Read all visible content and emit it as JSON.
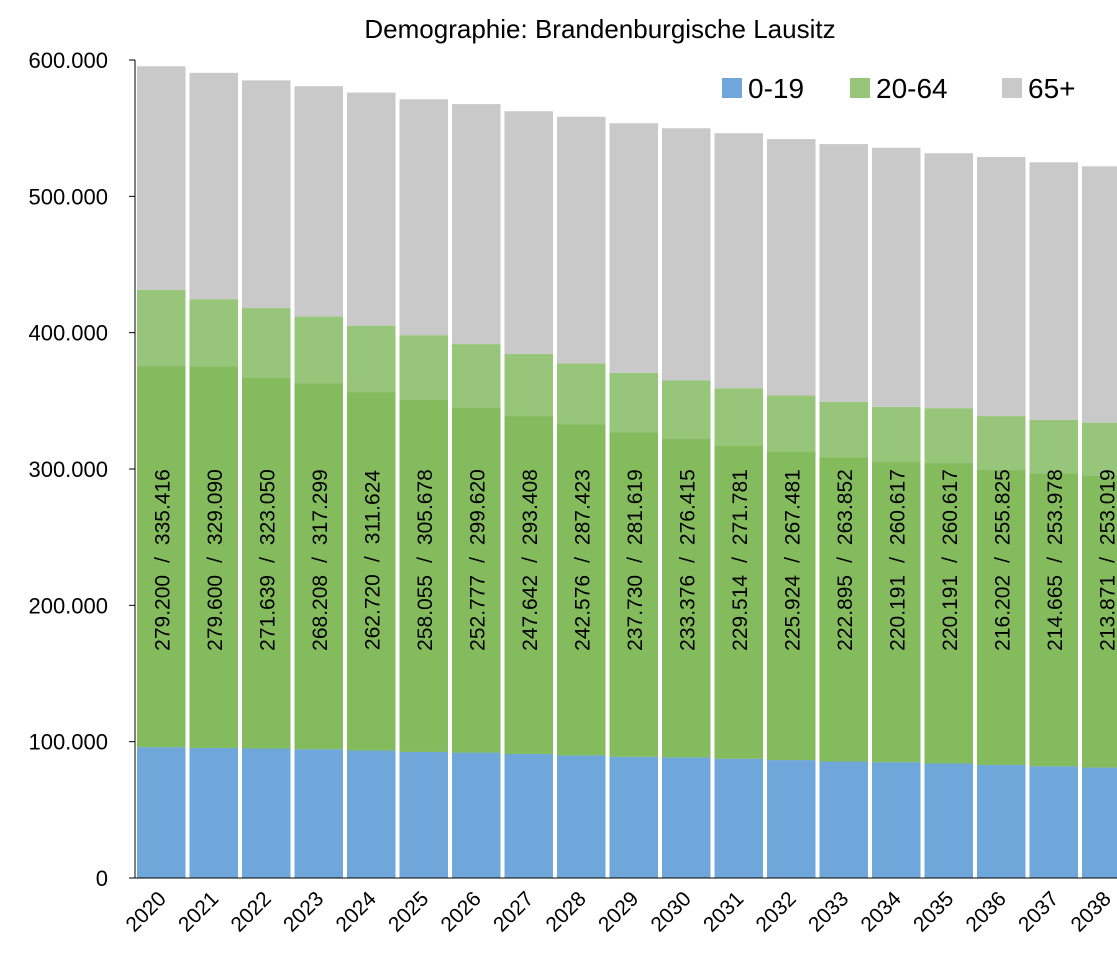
{
  "chart_data": {
    "type": "bar",
    "stacked": true,
    "title": "Demographie: Brandenburgische Lausitz",
    "categories": [
      "2020",
      "2021",
      "2022",
      "2023",
      "2024",
      "2025",
      "2026",
      "2027",
      "2028",
      "2029",
      "2030",
      "2031",
      "2032",
      "2033",
      "2034",
      "2035",
      "2036",
      "2037",
      "2038"
    ],
    "series": [
      {
        "name": "0-19",
        "color": "#70a7da",
        "values": [
          96000,
          95500,
          95000,
          94500,
          93500,
          92500,
          92000,
          91000,
          90000,
          89000,
          88500,
          87500,
          86500,
          85500,
          85000,
          84000,
          83000,
          82000,
          81000
        ]
      },
      {
        "name": "20-64",
        "color": "#97c67b",
        "values": [
          335416,
          329090,
          323050,
          317299,
          311624,
          305678,
          299620,
          293408,
          287423,
          281619,
          276415,
          271781,
          267481,
          263852,
          260617,
          260617,
          255825,
          253978,
          253019
        ],
        "value_labels": [
          "335.416",
          "329.090",
          "323.050",
          "317.299",
          "311.624",
          "305.678",
          "299.620",
          "293.408",
          "287.423",
          "281.619",
          "276.415",
          "271.781",
          "267.481",
          "263.852",
          "260.617",
          "260.617",
          "255.825",
          "253.978",
          "253.019"
        ]
      },
      {
        "name": "65+",
        "color": "#c9c9c9",
        "values": [
          164000,
          166000,
          167000,
          169000,
          171000,
          173000,
          176000,
          178000,
          181000,
          183000,
          185000,
          187000,
          188000,
          189000,
          190000,
          187000,
          190000,
          189000,
          188000
        ]
      }
    ],
    "overlay": {
      "color": "#83bb5d",
      "values": [
        279200,
        279600,
        271639,
        268208,
        262720,
        258055,
        252777,
        247642,
        242576,
        237730,
        233376,
        229514,
        225924,
        222895,
        220191,
        220191,
        216202,
        214665,
        213871
      ],
      "value_labels": [
        "279.200",
        "279.600",
        "271.639",
        "268.208",
        "262.720",
        "258.055",
        "252.777",
        "247.642",
        "242.576",
        "237.730",
        "233.376",
        "229.514",
        "225.924",
        "222.895",
        "220.191",
        "220.191",
        "216.202",
        "214.665",
        "213.871"
      ]
    },
    "label_separator": "/",
    "ylim": [
      0,
      600000
    ],
    "yticks": [
      0,
      {
        "value": 100000,
        "label": "100.000"
      },
      {
        "value": 200000,
        "label": "200.000"
      },
      {
        "value": 300000,
        "label": "300.000"
      },
      {
        "value": 400000,
        "label": "400.000"
      },
      {
        "value": 500000,
        "label": "500.000"
      },
      {
        "value": 600000,
        "label": "600.000"
      }
    ],
    "legend": "top-right"
  }
}
